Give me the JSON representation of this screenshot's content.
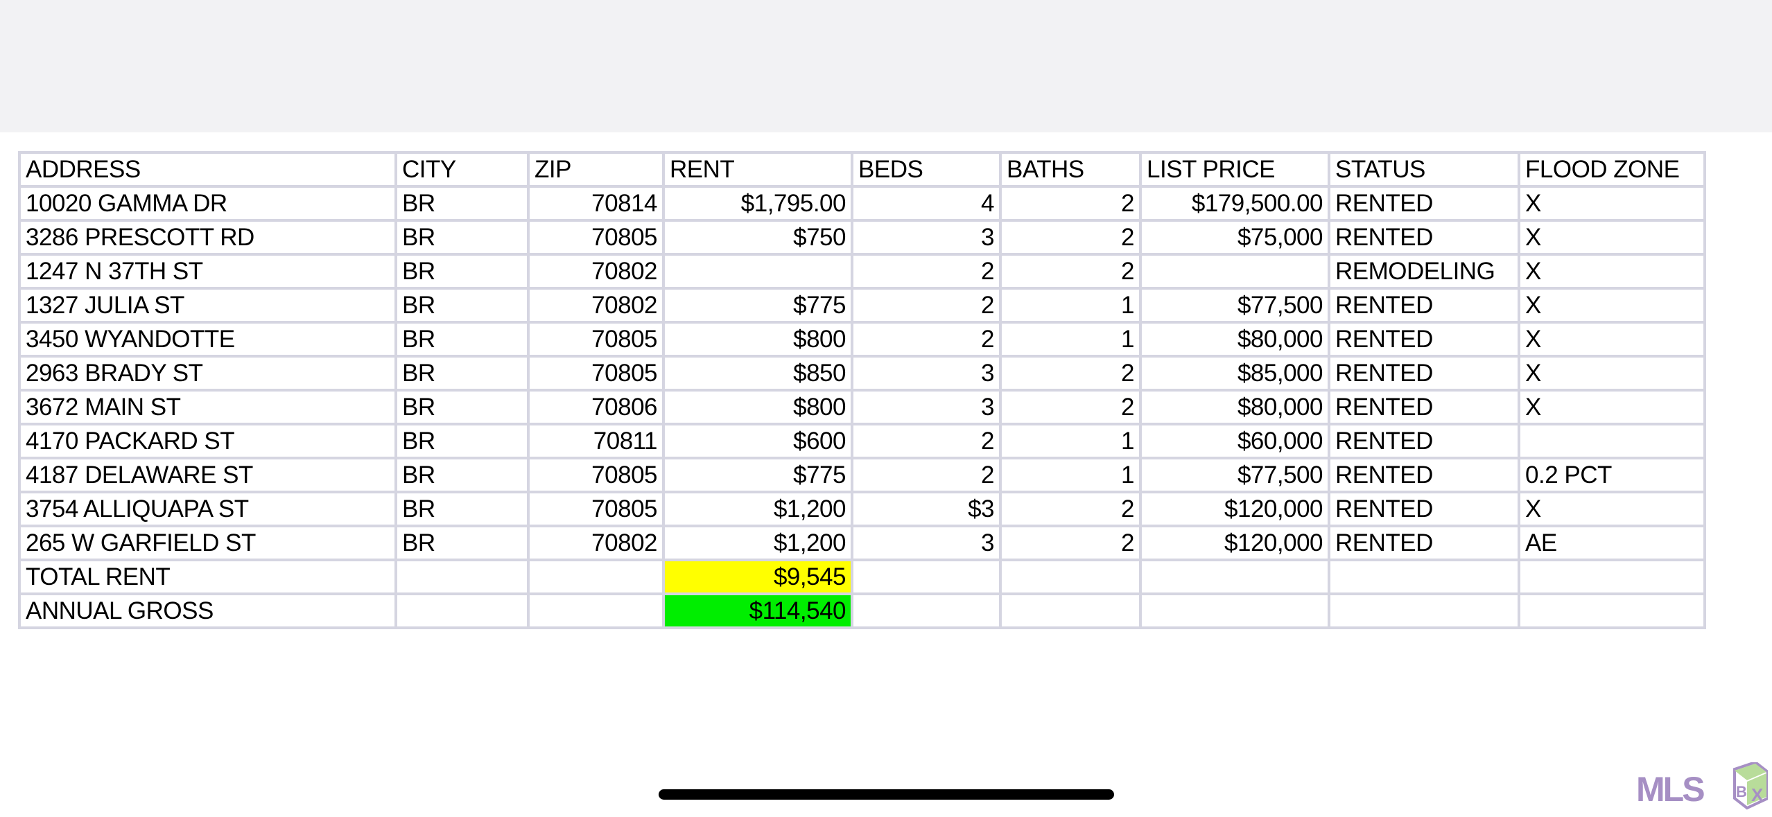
{
  "columns": [
    "ADDRESS",
    "CITY",
    "ZIP",
    "RENT",
    "BEDS",
    "BATHS",
    "LIST PRICE",
    "STATUS",
    "FLOOD ZONE"
  ],
  "rows": [
    [
      "10020 GAMMA DR",
      "BR",
      "70814",
      "$1,795.00",
      "4",
      "2",
      "$179,500.00",
      "RENTED",
      "X"
    ],
    [
      "3286 PRESCOTT RD",
      "BR",
      "70805",
      "$750",
      "3",
      "2",
      "$75,000",
      "RENTED",
      "X"
    ],
    [
      "1247 N 37TH ST",
      "BR",
      "70802",
      "",
      "2",
      "2",
      "",
      "REMODELING",
      "X"
    ],
    [
      "1327 JULIA ST",
      "BR",
      "70802",
      "$775",
      "2",
      "1",
      "$77,500",
      "RENTED",
      "X"
    ],
    [
      "3450 WYANDOTTE",
      "BR",
      "70805",
      "$800",
      "2",
      "1",
      "$80,000",
      "RENTED",
      "X"
    ],
    [
      "2963 BRADY ST",
      "BR",
      "70805",
      "$850",
      "3",
      "2",
      "$85,000",
      "RENTED",
      "X"
    ],
    [
      "3672 MAIN ST",
      "BR",
      "70806",
      "$800",
      "3",
      "2",
      "$80,000",
      "RENTED",
      "X"
    ],
    [
      "4170 PACKARD ST",
      "BR",
      "70811",
      "$600",
      "2",
      "1",
      "$60,000",
      "RENTED",
      ""
    ],
    [
      "4187 DELAWARE ST",
      "BR",
      "70805",
      "$775",
      "2",
      "1",
      "$77,500",
      "RENTED",
      "0.2 PCT"
    ],
    [
      "3754 ALLIQUAPA ST",
      "BR",
      "70805",
      "$1,200",
      "$3",
      "2",
      "$120,000",
      "RENTED",
      "X"
    ],
    [
      "265 W GARFIELD ST",
      "BR",
      "70802",
      "$1,200",
      "3",
      "2",
      "$120,000",
      "RENTED",
      "AE"
    ]
  ],
  "totals": {
    "total_rent_label": "TOTAL RENT",
    "total_rent": "$9,545",
    "total_rent_color": "#ffff00",
    "annual_gross_label": "ANNUAL GROSS",
    "annual_gross": "$114,540",
    "annual_gross_color": "#00ee00"
  },
  "watermark": {
    "text": "MLS BOX",
    "colors": [
      "#a68fc4",
      "#b8dc9a"
    ]
  }
}
